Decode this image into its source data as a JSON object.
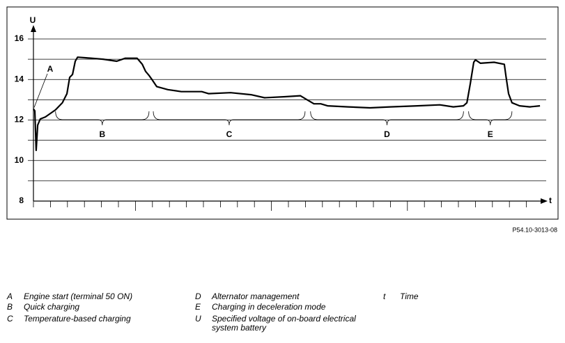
{
  "chart_data": {
    "type": "line",
    "y_label": "U",
    "x_label": "t",
    "figure_id": "P54.10-3013-08",
    "xlim": [
      0,
      30
    ],
    "ylim": [
      8,
      16
    ],
    "yticks": [
      8,
      10,
      12,
      14,
      16
    ],
    "minor_yticks": [
      9,
      11,
      13,
      15
    ],
    "grid": true,
    "color": "#000000",
    "x": [
      0,
      0.08,
      0.16,
      0.25,
      0.4,
      0.7,
      1.3,
      1.7,
      1.97,
      2.13,
      2.3,
      2.46,
      2.6,
      3.1,
      4.1,
      4.9,
      5.4,
      6.1,
      6.4,
      6.6,
      6.8,
      6.97,
      7.25,
      7.9,
      8.7,
      9.9,
      10.3,
      11.6,
      12.8,
      13.6,
      14.8,
      15.7,
      16.1,
      16.5,
      16.9,
      17.3,
      18.5,
      19.8,
      21.0,
      22.6,
      23.9,
      24.7,
      25.3,
      25.5,
      25.7,
      25.9,
      26.0,
      26.3,
      27.1,
      27.7,
      27.8,
      27.95,
      28.15,
      28.6,
      29.2,
      29.8
    ],
    "values": [
      12.55,
      12.45,
      10.5,
      11.75,
      12.05,
      12.15,
      12.5,
      12.85,
      13.3,
      14.1,
      14.25,
      14.9,
      15.1,
      15.07,
      15.0,
      14.9,
      15.05,
      15.05,
      14.75,
      14.4,
      14.2,
      14.0,
      13.65,
      13.5,
      13.4,
      13.4,
      13.3,
      13.35,
      13.25,
      13.1,
      13.15,
      13.2,
      13.0,
      12.8,
      12.8,
      12.7,
      12.65,
      12.6,
      12.65,
      12.7,
      12.75,
      12.65,
      12.7,
      12.85,
      13.8,
      14.85,
      14.97,
      14.8,
      14.85,
      14.75,
      14.15,
      13.3,
      12.85,
      12.7,
      12.65,
      12.7
    ],
    "annotations": [
      {
        "text": "A",
        "x": 0
      }
    ],
    "ranges": [
      {
        "label": "B",
        "start": 1.3,
        "end": 6.8
      },
      {
        "label": "C",
        "start": 7.05,
        "end": 15.98
      },
      {
        "label": "D",
        "start": 16.3,
        "end": 25.3
      },
      {
        "label": "E",
        "start": 25.6,
        "end": 28.15
      }
    ],
    "legend_key": [
      {
        "key": "A",
        "text": "Engine start (terminal 50 ON)"
      },
      {
        "key": "B",
        "text": "Quick charging"
      },
      {
        "key": "C",
        "text": "Temperature-based charging"
      },
      {
        "key": "D",
        "text": "Alternator management"
      },
      {
        "key": "E",
        "text": "Charging in deceleration mode"
      },
      {
        "key": "U",
        "text": [
          "Specified voltage of on-board electrical",
          "system battery"
        ]
      },
      {
        "key": "t",
        "text": "Time"
      }
    ]
  }
}
